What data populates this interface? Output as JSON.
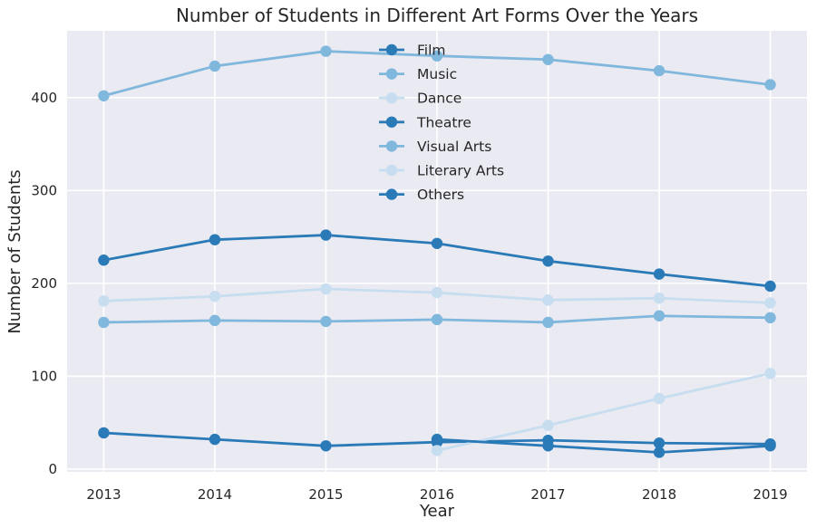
{
  "chart_data": {
    "type": "line",
    "title": "Number of Students in Different Art Forms Over the Years",
    "xlabel": "Year",
    "ylabel": "Number of Students",
    "x": [
      2013,
      2014,
      2015,
      2016,
      2017,
      2018,
      2019
    ],
    "xlim": [
      2012.67,
      2019.33
    ],
    "ylim": [
      -3,
      472
    ],
    "yticks": [
      0,
      100,
      200,
      300,
      400
    ],
    "grid": true,
    "legend_position": "top-center",
    "series": [
      {
        "name": "Film",
        "color": "#2a7ab8",
        "x": [
          2013,
          2014,
          2015,
          2016,
          2017,
          2018,
          2019
        ],
        "values": [
          225,
          247,
          252,
          243,
          224,
          210,
          197
        ]
      },
      {
        "name": "Music",
        "color": "#80b7dc",
        "x": [
          2013,
          2014,
          2015,
          2016,
          2017,
          2018,
          2019
        ],
        "values": [
          402,
          434,
          450,
          445,
          441,
          429,
          414
        ]
      },
      {
        "name": "Dance",
        "color": "#c7ddf0",
        "x": [
          2013,
          2014,
          2015,
          2016,
          2017,
          2018,
          2019
        ],
        "values": [
          181,
          186,
          194,
          190,
          182,
          184,
          179
        ]
      },
      {
        "name": "Theatre",
        "color": "#2a7ab8",
        "x": [
          2013,
          2014,
          2015,
          2016,
          2017,
          2018,
          2019
        ],
        "values": [
          39,
          32,
          25,
          29,
          31,
          28,
          27
        ]
      },
      {
        "name": "Visual Arts",
        "color": "#80b7dc",
        "x": [
          2013,
          2014,
          2015,
          2016,
          2017,
          2018,
          2019
        ],
        "values": [
          158,
          160,
          159,
          161,
          158,
          165,
          163
        ]
      },
      {
        "name": "Literary Arts",
        "color": "#c7ddf0",
        "x": [
          2016,
          2017,
          2018,
          2019
        ],
        "values": [
          20,
          47,
          76,
          103
        ]
      },
      {
        "name": "Others",
        "color": "#2a7ab8",
        "x": [
          2016,
          2017,
          2018,
          2019
        ],
        "values": [
          32,
          25,
          18,
          25
        ]
      }
    ]
  }
}
